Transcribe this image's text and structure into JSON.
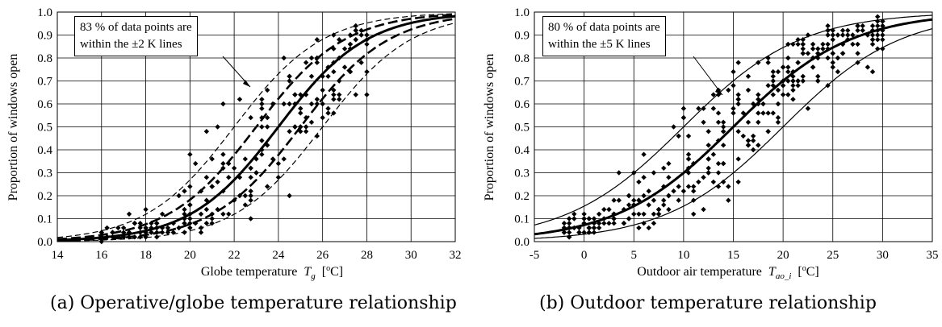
{
  "chart_data": [
    {
      "type": "scatter",
      "ylabel": "Proportion of windows open",
      "xlabel_main": "Globe temperature",
      "xlabel_sym": "T",
      "xlabel_sub": "g",
      "xlabel_unit_open": "[",
      "xlabel_unit_deg": "o",
      "xlabel_unit_close": "C]",
      "xlim": [
        14,
        32
      ],
      "ylim": [
        0,
        1
      ],
      "xticks": [
        14,
        16,
        18,
        20,
        22,
        24,
        26,
        28,
        30,
        32
      ],
      "xtick_labels": [
        "14",
        "16",
        "18",
        "20",
        "22",
        "24",
        "26",
        "28",
        "30",
        "32"
      ],
      "yticks": [
        0,
        0.1,
        0.2,
        0.3,
        0.4,
        0.5,
        0.6,
        0.7,
        0.8,
        0.9,
        1.0
      ],
      "ytick_labels": [
        "0.0",
        "0.1",
        "0.2",
        "0.3",
        "0.4",
        "0.5",
        "0.6",
        "0.7",
        "0.8",
        "0.9",
        "1.0"
      ],
      "grid": true,
      "annotation": "83 % of data points are\nwithin the ±2 K lines",
      "caption": "(a) Operative/globe temperature relationship",
      "model": {
        "midpoint": 24.0,
        "slope": 0.5,
        "bands": [
          {
            "name": "+2 K",
            "shift": -2,
            "style": "thin-dash"
          },
          {
            "name": "+1 K",
            "shift": -1,
            "style": "thick-dash"
          },
          {
            "name": "-1 K",
            "shift": 1,
            "style": "thick-dash"
          },
          {
            "name": "-2 K",
            "shift": 2,
            "style": "thin-dash"
          }
        ]
      },
      "points": {
        "x_min": 16,
        "x_max": 28,
        "x_step": 0.25,
        "spread": 2.4
      }
    },
    {
      "type": "scatter",
      "ylabel": "Proportion of windows open",
      "xlabel_main": "Outdoor air temperature",
      "xlabel_sym": "T",
      "xlabel_sub": "ao_i",
      "xlabel_unit_open": "[",
      "xlabel_unit_deg": "o",
      "xlabel_unit_close": "C]",
      "xlim": [
        -5,
        35
      ],
      "ylim": [
        0,
        1
      ],
      "xticks": [
        -5,
        0,
        5,
        10,
        15,
        20,
        25,
        30,
        35
      ],
      "xtick_labels": [
        "-5",
        "0",
        "5",
        "10",
        "15",
        "20",
        "25",
        "30",
        "35"
      ],
      "yticks": [
        0,
        0.1,
        0.2,
        0.3,
        0.4,
        0.5,
        0.6,
        0.7,
        0.8,
        0.9,
        1.0
      ],
      "ytick_labels": [
        "0.0",
        "0.1",
        "0.2",
        "0.3",
        "0.4",
        "0.5",
        "0.6",
        "0.7",
        "0.8",
        "0.9",
        "1.0"
      ],
      "grid": true,
      "annotation": "80 % of data points are\nwithin the ±5 K lines",
      "caption": "(b) Outdoor temperature relationship",
      "model": {
        "midpoint": 15.0,
        "slope": 0.17,
        "bands": [
          {
            "name": "+5 K",
            "shift": -5,
            "style": "thin"
          },
          {
            "name": "-5 K",
            "shift": 5,
            "style": "thin"
          }
        ]
      },
      "points": {
        "x_min": -2,
        "x_max": 30,
        "x_step": 0.5,
        "spread": 6.5
      }
    }
  ]
}
